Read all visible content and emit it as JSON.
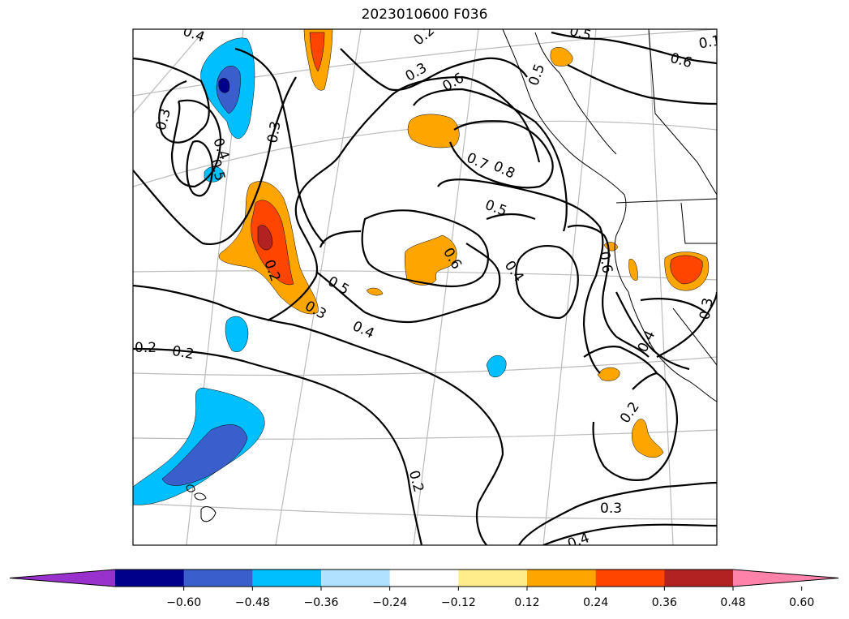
{
  "title": "2023010600 F036",
  "contour_labels": [
    "0.4",
    "0.3",
    "0.3",
    "0.4",
    "0.5",
    "0.2",
    "0.3",
    "0.6",
    "0.7",
    "0.8",
    "0.5",
    "0.6",
    "0.5",
    "0.4",
    "0.2",
    "0.3",
    "0.4",
    "0.5",
    "0.6",
    "0.2",
    "0.2",
    "0.2",
    "0.3",
    "0.4",
    "0.6",
    "0.4",
    "0.3",
    "0.2",
    "0.1",
    "0.5"
  ],
  "colorbar": {
    "ticks": [
      "−0.60",
      "−0.48",
      "−0.36",
      "−0.24",
      "−0.12",
      "0.12",
      "0.24",
      "0.36",
      "0.48",
      "0.60"
    ],
    "colors": [
      "#9932cc",
      "#00008b",
      "#3a5fcd",
      "#00bfff",
      "#b0e2ff",
      "#ffffff",
      "#ffec8b",
      "#ffa500",
      "#ff4500",
      "#b22222",
      "#ff82ab"
    ]
  }
}
